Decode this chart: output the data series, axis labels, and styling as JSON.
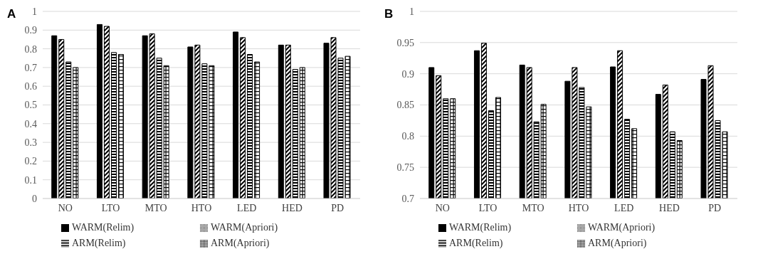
{
  "chart_data": [
    {
      "type": "bar",
      "title": "A",
      "categories": [
        "NO",
        "LTO",
        "MTO",
        "HTO",
        "LED",
        "HED",
        "PD"
      ],
      "series": [
        {
          "name": "WARM(Relim)",
          "color": "#000000",
          "values": [
            0.87,
            0.93,
            0.87,
            0.81,
            0.89,
            0.82,
            0.83
          ]
        },
        {
          "name": "WARM(Apriori)",
          "color": "#000000",
          "values": [
            0.85,
            0.92,
            0.88,
            0.82,
            0.86,
            0.82,
            0.86
          ]
        },
        {
          "name": "ARM(Relim)",
          "color": "#000000",
          "values": [
            0.73,
            0.78,
            0.75,
            0.72,
            0.77,
            0.69,
            0.75
          ]
        },
        {
          "name": "ARM(Apriori)",
          "color": "#000000",
          "values": [
            0.7,
            0.77,
            0.71,
            0.71,
            0.73,
            0.7,
            0.76
          ]
        }
      ],
      "ylim": [
        0,
        1
      ],
      "yticks": [
        0,
        0.1,
        0.2,
        0.3,
        0.4,
        0.5,
        0.6,
        0.7,
        0.8,
        0.9,
        1
      ],
      "grid": "y",
      "legend": "bottom"
    },
    {
      "type": "bar",
      "title": "B",
      "categories": [
        "NO",
        "LTO",
        "MTO",
        "HTO",
        "LED",
        "HED",
        "PD"
      ],
      "series": [
        {
          "name": "WARM(Relim)",
          "color": "#000000",
          "values": [
            0.91,
            0.937,
            0.914,
            0.888,
            0.911,
            0.867,
            0.891
          ]
        },
        {
          "name": "WARM(Apriori)",
          "color": "#000000",
          "values": [
            0.897,
            0.949,
            0.91,
            0.91,
            0.937,
            0.882,
            0.913
          ]
        },
        {
          "name": "ARM(Relim)",
          "color": "#000000",
          "values": [
            0.86,
            0.841,
            0.823,
            0.878,
            0.827,
            0.807,
            0.825
          ]
        },
        {
          "name": "ARM(Apriori)",
          "color": "#000000",
          "values": [
            0.86,
            0.862,
            0.851,
            0.847,
            0.812,
            0.793,
            0.807
          ]
        }
      ],
      "ylim": [
        0.7,
        1
      ],
      "yticks": [
        0.7,
        0.75,
        0.8,
        0.85,
        0.9,
        0.95,
        1
      ],
      "grid": "y",
      "legend": "bottom"
    }
  ]
}
